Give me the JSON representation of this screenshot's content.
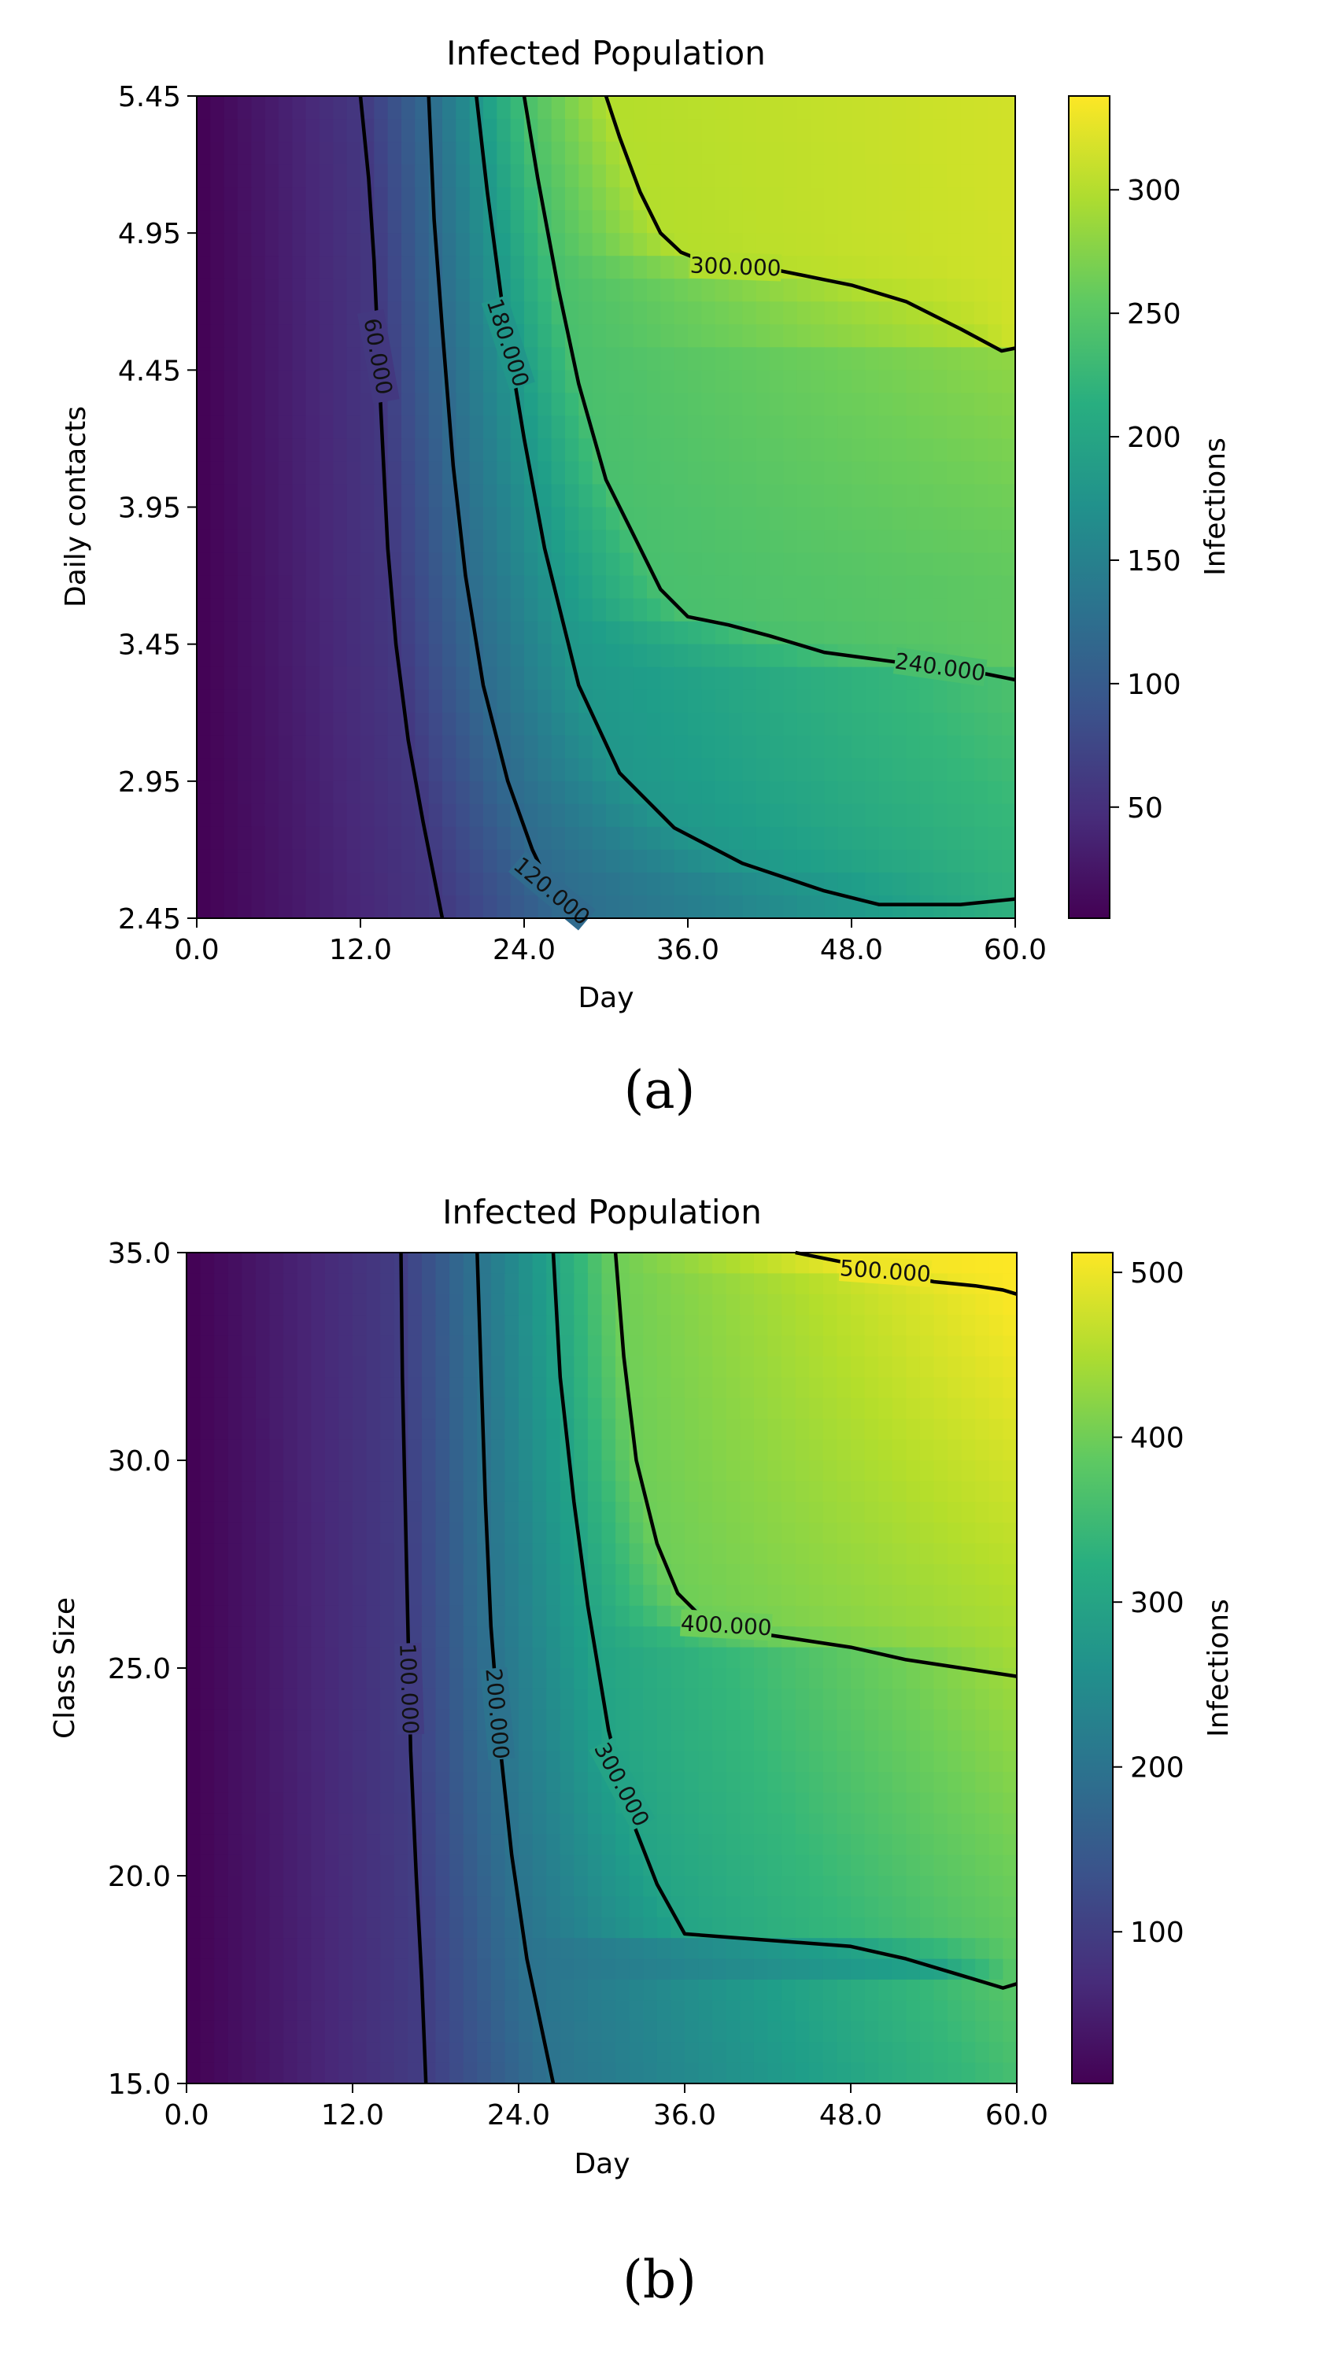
{
  "chart_data": [
    {
      "type": "heatmap",
      "title": "Infected Population",
      "panel_label": "(a)",
      "xlabel": "Day",
      "ylabel": "Daily contacts",
      "colorbar_label": "Infections",
      "xlim": [
        0,
        60
      ],
      "ylim": [
        2.45,
        5.45
      ],
      "xticks": [
        "0.0",
        "12.0",
        "24.0",
        "36.0",
        "48.0",
        "60.0"
      ],
      "yticks": [
        "2.45",
        "2.95",
        "3.45",
        "3.95",
        "4.45",
        "4.95",
        "5.45"
      ],
      "colorbar_range": [
        5,
        338
      ],
      "colorbar_ticks": [
        "50",
        "100",
        "150",
        "200",
        "250",
        "300"
      ],
      "contours": [
        {
          "level": 60,
          "label": "60.000",
          "points": [
            [
              12.0,
              5.45
            ],
            [
              12.6,
              5.15
            ],
            [
              13.0,
              4.85
            ],
            [
              13.5,
              4.3
            ],
            [
              14.0,
              3.8
            ],
            [
              14.6,
              3.45
            ],
            [
              15.5,
              3.1
            ],
            [
              16.6,
              2.8
            ],
            [
              18.0,
              2.45
            ]
          ]
        },
        {
          "level": 120,
          "label": "120.000",
          "points": [
            [
              17.0,
              5.45
            ],
            [
              17.4,
              5.0
            ],
            [
              18.0,
              4.6
            ],
            [
              18.8,
              4.1
            ],
            [
              19.7,
              3.7
            ],
            [
              21.0,
              3.3
            ],
            [
              22.8,
              2.95
            ],
            [
              24.6,
              2.7
            ],
            [
              27.0,
              2.45
            ]
          ]
        },
        {
          "level": 180,
          "label": "180.000",
          "points": [
            [
              20.5,
              5.45
            ],
            [
              21.3,
              5.1
            ],
            [
              22.5,
              4.65
            ],
            [
              24.0,
              4.2
            ],
            [
              25.5,
              3.8
            ],
            [
              28.0,
              3.3
            ],
            [
              31.0,
              2.98
            ],
            [
              35.0,
              2.78
            ],
            [
              40.0,
              2.65
            ],
            [
              46.0,
              2.55
            ],
            [
              50.0,
              2.5
            ],
            [
              56.0,
              2.5
            ],
            [
              60.0,
              2.52
            ]
          ]
        },
        {
          "level": 240,
          "label": "240.000",
          "points": [
            [
              24.0,
              5.45
            ],
            [
              25.0,
              5.15
            ],
            [
              26.5,
              4.75
            ],
            [
              28.0,
              4.4
            ],
            [
              30.0,
              4.05
            ],
            [
              32.0,
              3.85
            ],
            [
              34.0,
              3.65
            ],
            [
              36.0,
              3.55
            ],
            [
              39.0,
              3.52
            ],
            [
              42.0,
              3.48
            ],
            [
              46.0,
              3.42
            ],
            [
              52.0,
              3.38
            ],
            [
              56.0,
              3.36
            ],
            [
              60.0,
              3.32
            ]
          ]
        },
        {
          "level": 300,
          "label": "300.000",
          "points": [
            [
              30.0,
              5.45
            ],
            [
              31.0,
              5.3
            ],
            [
              32.5,
              5.1
            ],
            [
              34.0,
              4.95
            ],
            [
              35.5,
              4.88
            ],
            [
              37.0,
              4.85
            ],
            [
              39.0,
              4.83
            ],
            [
              42.0,
              4.82
            ],
            [
              46.0,
              4.78
            ],
            [
              48.0,
              4.76
            ],
            [
              52.0,
              4.7
            ],
            [
              56.0,
              4.6
            ],
            [
              59.0,
              4.52
            ],
            [
              60.0,
              4.53
            ]
          ]
        }
      ]
    },
    {
      "type": "heatmap",
      "title": "Infected Population",
      "panel_label": "(b)",
      "xlabel": "Day",
      "ylabel": "Class Size",
      "colorbar_label": "Infections",
      "xlim": [
        0,
        60
      ],
      "ylim": [
        15.0,
        35.0
      ],
      "xticks": [
        "0.0",
        "12.0",
        "24.0",
        "36.0",
        "48.0",
        "60.0"
      ],
      "yticks": [
        "15.0",
        "20.0",
        "25.0",
        "30.0",
        "35.0"
      ],
      "colorbar_range": [
        8,
        512
      ],
      "colorbar_ticks": [
        "100",
        "200",
        "300",
        "400",
        "500"
      ],
      "contours": [
        {
          "level": 100,
          "label": "100.000",
          "points": [
            [
              15.5,
              35.0
            ],
            [
              15.6,
              32.0
            ],
            [
              15.8,
              29.0
            ],
            [
              16.0,
              26.0
            ],
            [
              16.2,
              23.0
            ],
            [
              16.6,
              20.0
            ],
            [
              17.0,
              17.5
            ],
            [
              17.3,
              15.0
            ]
          ]
        },
        {
          "level": 200,
          "label": "200.000",
          "points": [
            [
              21.0,
              35.0
            ],
            [
              21.3,
              32.0
            ],
            [
              21.6,
              29.0
            ],
            [
              22.0,
              26.0
            ],
            [
              22.7,
              23.0
            ],
            [
              23.5,
              20.5
            ],
            [
              24.6,
              18.0
            ],
            [
              26.5,
              15.0
            ]
          ]
        },
        {
          "level": 300,
          "label": "300.000",
          "points": [
            [
              26.5,
              35.0
            ],
            [
              27.0,
              32.0
            ],
            [
              28.0,
              29.0
            ],
            [
              29.0,
              26.5
            ],
            [
              30.5,
              23.5
            ],
            [
              32.0,
              21.5
            ],
            [
              34.0,
              19.8
            ],
            [
              36.0,
              18.6
            ],
            [
              40.0,
              18.5
            ],
            [
              44.0,
              18.4
            ],
            [
              48.0,
              18.3
            ],
            [
              52.0,
              18.0
            ],
            [
              56.0,
              17.6
            ],
            [
              59.0,
              17.3
            ],
            [
              60.0,
              17.4
            ]
          ]
        },
        {
          "level": 400,
          "label": "400.000",
          "points": [
            [
              31.0,
              35.0
            ],
            [
              31.6,
              32.5
            ],
            [
              32.5,
              30.0
            ],
            [
              34.0,
              28.0
            ],
            [
              35.5,
              26.8
            ],
            [
              37.0,
              26.3
            ],
            [
              40.0,
              25.9
            ],
            [
              44.0,
              25.7
            ],
            [
              48.0,
              25.5
            ],
            [
              52.0,
              25.2
            ],
            [
              56.0,
              25.0
            ],
            [
              60.0,
              24.8
            ]
          ]
        },
        {
          "level": 500,
          "label": "500.000",
          "points": [
            [
              44.0,
              35.0
            ],
            [
              47.0,
              34.8
            ],
            [
              50.0,
              34.6
            ],
            [
              54.0,
              34.3
            ],
            [
              57.0,
              34.2
            ],
            [
              59.0,
              34.1
            ],
            [
              60.0,
              34.0
            ]
          ]
        }
      ]
    }
  ]
}
